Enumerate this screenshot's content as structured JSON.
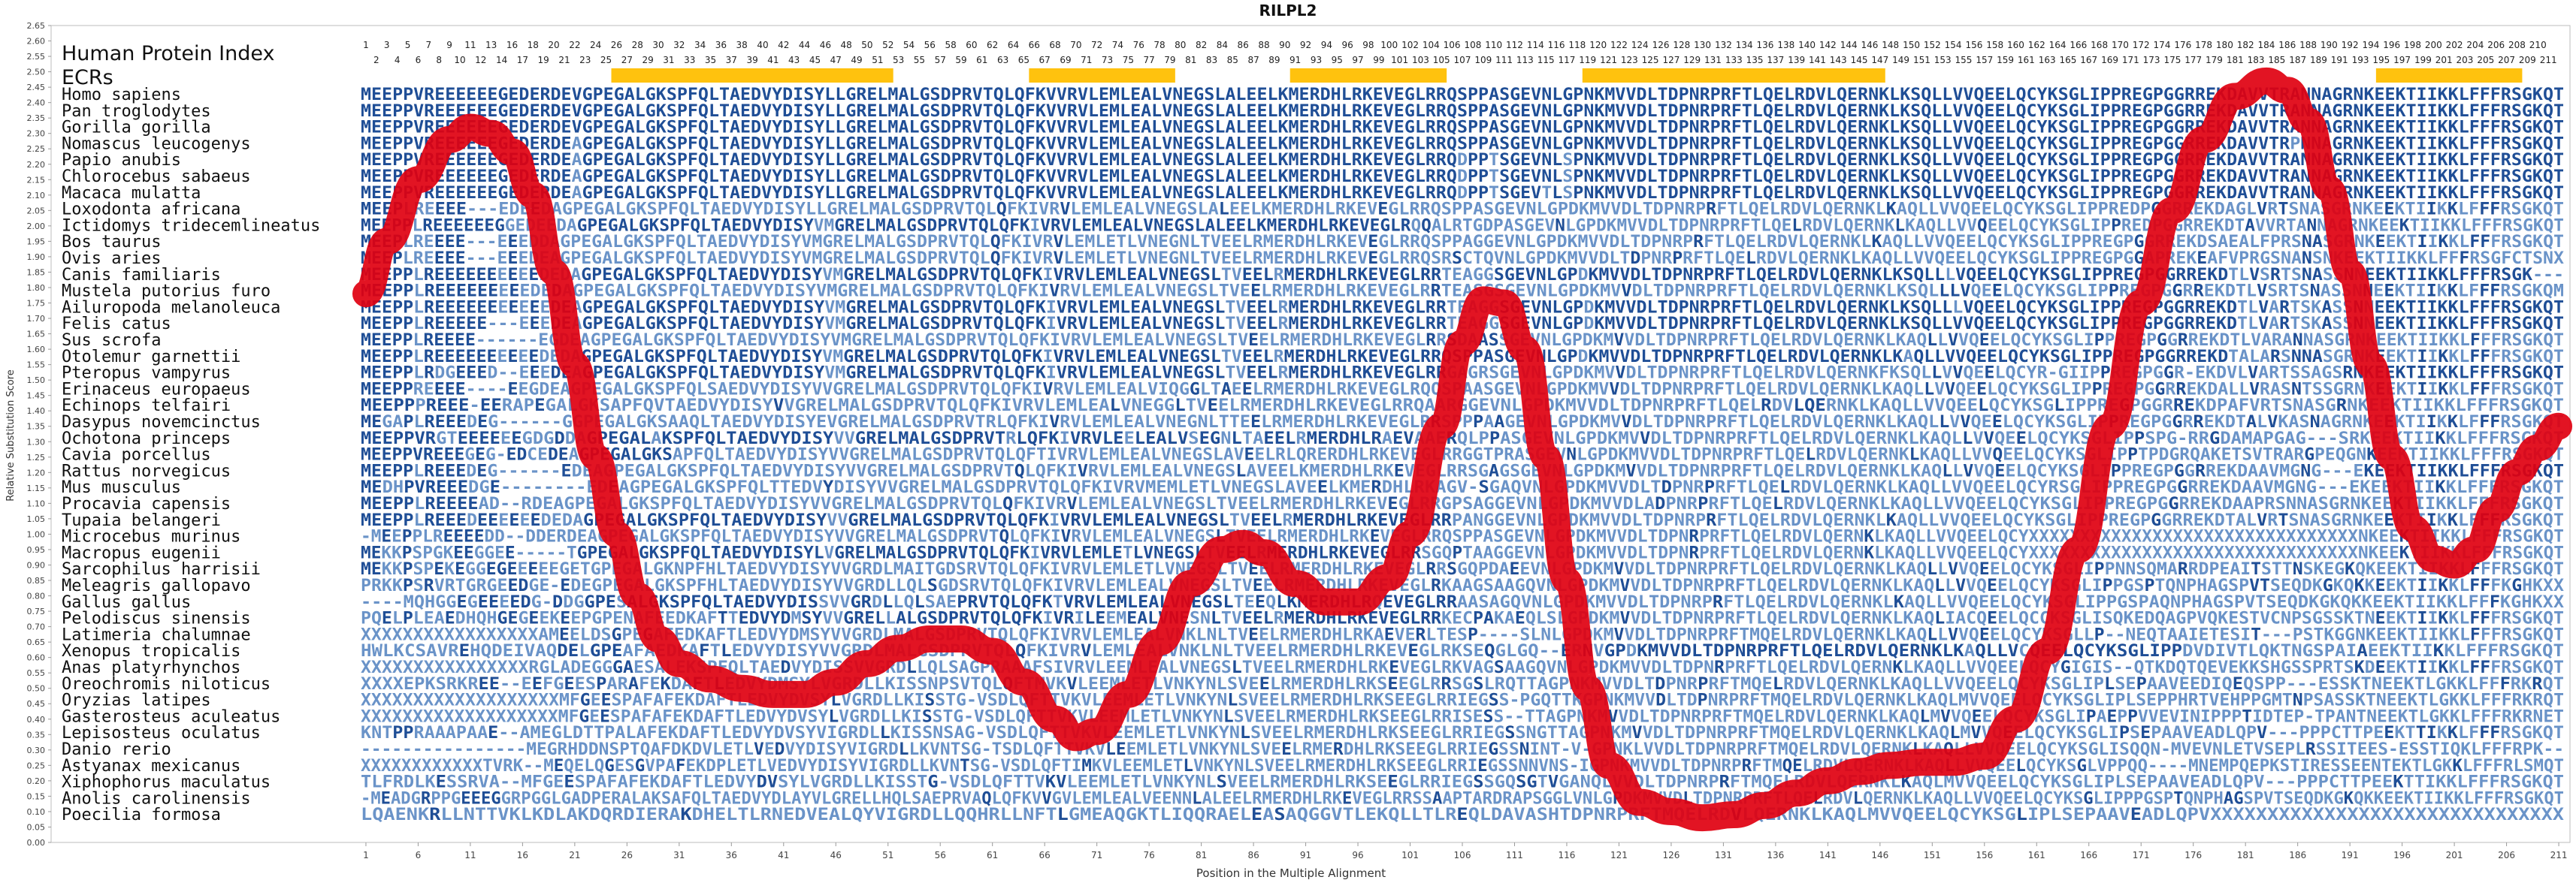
{
  "title": "RILPL2",
  "labels": {
    "human_index": "Human Protein Index",
    "ecrs": "ECRs",
    "y_axis": "Relative Substitution Score",
    "x_axis": "Position in the Multiple Alignment"
  },
  "colors": {
    "curve": "#e00010",
    "ecr_bar": "#ffc20e",
    "seq_conserved": "#1f4e96",
    "seq_variable": "#6a93c8",
    "frame": "#bdbdbd"
  },
  "human_index_row1": [
    "1",
    "3",
    "5",
    "7",
    "9",
    "11",
    "13",
    "16",
    "18",
    "20",
    "22",
    "24",
    "26",
    "28",
    "30",
    "32",
    "34",
    "36",
    "38",
    "40",
    "42",
    "44",
    "46",
    "48",
    "50",
    "52",
    "54",
    "56",
    "58",
    "60",
    "62",
    "64",
    "66",
    "68",
    "70",
    "72",
    "74",
    "76",
    "78",
    "80",
    "82",
    "84",
    "86",
    "88",
    "90",
    "92",
    "94",
    "96",
    "98",
    "100",
    "102",
    "104",
    "106",
    "108",
    "110",
    "112",
    "114",
    "116",
    "118",
    "120",
    "122",
    "124",
    "126",
    "128",
    "130",
    "132",
    "134",
    "136",
    "138",
    "140",
    "142",
    "144",
    "146",
    "148",
    "150",
    "152",
    "154",
    "156",
    "158",
    "160",
    "162",
    "164",
    "166",
    "168",
    "170",
    "172",
    "174",
    "176",
    "178",
    "180",
    "182",
    "184",
    "186",
    "188",
    "190",
    "192",
    "194",
    "196",
    "198",
    "200",
    "202",
    "204",
    "206",
    "208",
    "210"
  ],
  "human_index_row2": [
    "2",
    "4",
    "6",
    "8",
    "10",
    "12",
    "14",
    "17",
    "19",
    "21",
    "23",
    "25",
    "27",
    "29",
    "31",
    "33",
    "35",
    "37",
    "39",
    "41",
    "43",
    "45",
    "47",
    "49",
    "51",
    "53",
    "55",
    "57",
    "59",
    "61",
    "63",
    "65",
    "67",
    "69",
    "71",
    "73",
    "75",
    "77",
    "79",
    "81",
    "83",
    "85",
    "87",
    "89",
    "91",
    "93",
    "95",
    "97",
    "99",
    "101",
    "103",
    "105",
    "107",
    "109",
    "111",
    "113",
    "115",
    "117",
    "119",
    "121",
    "123",
    "125",
    "127",
    "129",
    "131",
    "133",
    "135",
    "137",
    "139",
    "141",
    "143",
    "145",
    "147",
    "149",
    "151",
    "153",
    "155",
    "157",
    "159",
    "161",
    "163",
    "165",
    "167",
    "169",
    "171",
    "173",
    "175",
    "177",
    "179",
    "181",
    "183",
    "185",
    "187",
    "189",
    "191",
    "193",
    "195",
    "197",
    "199",
    "201",
    "203",
    "205",
    "207",
    "209",
    "211"
  ],
  "ecr_segments": [
    [
      25,
      51
    ],
    [
      65,
      78
    ],
    [
      90,
      104
    ],
    [
      118,
      146
    ],
    [
      194,
      207
    ]
  ],
  "x_ticks": [
    "1",
    "6",
    "11",
    "16",
    "21",
    "26",
    "31",
    "36",
    "41",
    "46",
    "51",
    "56",
    "61",
    "66",
    "71",
    "76",
    "81",
    "86",
    "91",
    "96",
    "101",
    "106",
    "111",
    "116",
    "121",
    "126",
    "131",
    "136",
    "141",
    "146",
    "151",
    "156",
    "161",
    "166",
    "171",
    "176",
    "181",
    "186",
    "191",
    "196",
    "201",
    "206",
    "211"
  ],
  "y_ticks": [
    "0.00",
    "0.05",
    "0.10",
    "0.15",
    "0.20",
    "0.25",
    "0.30",
    "0.35",
    "0.40",
    "0.45",
    "0.50",
    "0.55",
    "0.60",
    "0.65",
    "0.70",
    "0.75",
    "0.80",
    "0.85",
    "0.90",
    "0.95",
    "1.00",
    "1.05",
    "1.10",
    "1.15",
    "1.20",
    "1.25",
    "1.30",
    "1.35",
    "1.40",
    "1.45",
    "1.50",
    "1.55",
    "1.60",
    "1.65",
    "1.70",
    "1.75",
    "1.80",
    "1.85",
    "1.90",
    "1.95",
    "2.00",
    "2.05",
    "2.10",
    "2.15",
    "2.20",
    "2.25",
    "2.30",
    "2.35",
    "2.40",
    "2.45",
    "2.50",
    "2.55",
    "2.60",
    "2.65"
  ],
  "y_range": [
    0,
    2.65
  ],
  "x_range": [
    1,
    211
  ],
  "curve_points": [
    [
      1,
      1.78
    ],
    [
      3,
      1.95
    ],
    [
      6,
      2.15
    ],
    [
      9,
      2.28
    ],
    [
      11,
      2.32
    ],
    [
      13,
      2.3
    ],
    [
      15,
      2.24
    ],
    [
      17,
      2.1
    ],
    [
      19,
      1.85
    ],
    [
      21,
      1.55
    ],
    [
      23,
      1.25
    ],
    [
      25,
      1.0
    ],
    [
      27,
      0.8
    ],
    [
      29,
      0.66
    ],
    [
      31,
      0.58
    ],
    [
      34,
      0.53
    ],
    [
      37,
      0.5
    ],
    [
      40,
      0.48
    ],
    [
      43,
      0.48
    ],
    [
      46,
      0.52
    ],
    [
      49,
      0.58
    ],
    [
      52,
      0.63
    ],
    [
      55,
      0.66
    ],
    [
      58,
      0.66
    ],
    [
      61,
      0.62
    ],
    [
      64,
      0.52
    ],
    [
      67,
      0.4
    ],
    [
      69,
      0.34
    ],
    [
      71,
      0.36
    ],
    [
      74,
      0.48
    ],
    [
      77,
      0.65
    ],
    [
      80,
      0.84
    ],
    [
      83,
      0.95
    ],
    [
      85,
      0.97
    ],
    [
      87,
      0.94
    ],
    [
      90,
      0.84
    ],
    [
      93,
      0.78
    ],
    [
      96,
      0.78
    ],
    [
      99,
      0.86
    ],
    [
      101,
      1.0
    ],
    [
      104,
      1.35
    ],
    [
      106,
      1.62
    ],
    [
      108,
      1.76
    ],
    [
      110,
      1.75
    ],
    [
      112,
      1.6
    ],
    [
      114,
      1.25
    ],
    [
      116,
      0.85
    ],
    [
      118,
      0.5
    ],
    [
      120,
      0.25
    ],
    [
      123,
      0.13
    ],
    [
      126,
      0.1
    ],
    [
      129,
      0.08
    ],
    [
      132,
      0.09
    ],
    [
      135,
      0.12
    ],
    [
      138,
      0.16
    ],
    [
      141,
      0.2
    ],
    [
      144,
      0.23
    ],
    [
      147,
      0.25
    ],
    [
      150,
      0.26
    ],
    [
      153,
      0.26
    ],
    [
      156,
      0.28
    ],
    [
      159,
      0.4
    ],
    [
      162,
      0.62
    ],
    [
      165,
      0.95
    ],
    [
      168,
      1.35
    ],
    [
      171,
      1.75
    ],
    [
      174,
      2.05
    ],
    [
      177,
      2.28
    ],
    [
      180,
      2.42
    ],
    [
      183,
      2.47
    ],
    [
      185,
      2.44
    ],
    [
      187,
      2.34
    ],
    [
      189,
      2.12
    ],
    [
      191,
      1.85
    ],
    [
      193,
      1.55
    ],
    [
      195,
      1.25
    ],
    [
      197,
      1.02
    ],
    [
      199,
      0.92
    ],
    [
      201,
      0.9
    ],
    [
      203,
      0.95
    ],
    [
      205,
      1.08
    ],
    [
      207,
      1.2
    ],
    [
      209,
      1.28
    ],
    [
      211,
      1.35
    ]
  ],
  "species": [
    {
      "name": "Homo sapiens",
      "seq": "MEEPPVREEEEEEGEDERDEVGPEGALGKSPFQLTAEDVYDISYLLGRELMALGSDPRVTQLQFKVVRVLEMLEALVNEGSLALEELKMERDHLRKEVEGLRRQSPPASGEVNLGPNKMVVDLTDPNRPRFTLQELRDVLQERNKLKSQLLVVQEELQCYKSGLIPPREGPGGRREKDAVVTRANNAGRNKEEKTIIKKLFFFRSGKQT"
    },
    {
      "name": "Pan troglodytes",
      "seq": "MEEPPVREEEEEEGEDERDEVGPEGALGKSPFQLTAEDVYDISYLLGRELMALGSDPRVTQLQFKVVRVLEMLEALVNEGSLALEELKMERDHLRKEVEGLRRQSPPASGEVNLGPNKMVVDLTDPNRPRFTLQELRDVLQERNKLKSQLLVVQEELQCYKSGLIPPREGPGGRREKDAVVTRANNAGRNKEEKTIIKKLFFFRSGKQT"
    },
    {
      "name": "Gorilla gorilla",
      "seq": "MEEPPVREEEEEEGEDERDEVGPEGALGKSPFQLTAEDVYDISYLLGRELMALGSDPRVTQLQFKVVRVLEMLEALVNEGSLALEELKMERDHLRKEVEGLRRQSPPASGEVNLGPNKMVVDLTDPNRPRFTLQELRDVLQERNKLKSQLLVVQEELQCYKSGLIPPREGPGGRREKDAVVTRANNAGRNKEEKTIIKKLFFFRSGKQT"
    },
    {
      "name": "Nomascus leucogenys",
      "seq": "MEEPPVREEEEEEGEDERDEAGPEGALGKSPFQLTAEDVYDISYLLGRELMALGSDPRVTQLQFKVVRVLEMLEALVNEGSLALEELKMERDHLRKEVEGLRRQSPPASGEVNLGPNKMVVDLTDPNRPRFTLQELRDVLQERNKLKSQLLVVQEELQCYKSGLIPPREGPGGRREKDAVVTRPNNAGRNKEEKTIIKKLFFFRSGKQT"
    },
    {
      "name": "Papio anubis",
      "seq": "MEEPPVREEEEEEGEDERDEAGPEGALGKSPFQLTAEDVYDISYLLGRELMALGSDPRVTQLQFKVVRVLEMLEALVNEGSLALEELKMERDHLRKEVEGLRRQDPPTSGEVNLSPNKMVVDLTDPNRPRFTLQELRDVLQERNKLKSQLLVVQEELQCYKSGLIPPREGPGGRREKDAVVTRANNAGRNKEEKTIIKKLFFFRSGKQT"
    },
    {
      "name": "Chlorocebus sabaeus",
      "seq": "MEEPPVREEEEEEGEDERDEAGPEGALGKSPFQLTAEDVYDISYLLGRELMALGSDPRVTQLQFKVVRVLEMLEALVNEGSLALEELKMERDHLRKEVEGLRRQDPPTSGEVNLSPNKMVVDLTDPNRPRFTLQELRDVLQERNKLKSQLLVVQEELQCYKSGLIPPREGPGGRREKDAVVTRANNAGRNKEEKTIIKKLFFFRSGKQT"
    },
    {
      "name": "Macaca mulatta",
      "seq": "MEEPPVREEEEEEGEDERDEAGPEGALGKSPFQLTAEDVYDISYLLGRELMALGSDPRVTQLQFKVVRVLEMLEALVNEGSLALEELKMERDHLRKEVEGLRRQDPPTSGEVTLSPNKMVVDLTDPNRPRFTLQELRDVLQERNKLKSQLLVVQEELQCYKSGLIPPREGPGGRREKDAVVTRANNAGRNKEEKTIIKKLFFFRSGKQT"
    },
    {
      "name": "Loxodonta africana",
      "seq": "MEEPLREEEE---EDEEDAGPEGALGKSPFQLTAEDVYDISYLLGRELMALGSDPRVTQLQFKIVRVLEMLEALVNEGSLALEELKMERDHLRKEVEGLRRQSPPASGEVNLGPDKMVVDLTDPNRPRFTLQELRDVLQERNKLKAQLLVVQEELQCYKSGLIPPREDPGGRREKDAGLVRTSNASGRNKEEKTIIKKLFFFRSGKQT"
    },
    {
      "name": "Ictidomys tridecemlineatus",
      "seq": "MEEPPLREEEEEEGGEDEEDAGPEGALGKSPFQLTAEDVYDISYVMGRELMALGSDPRVTQLQFKIVRVLEMLEALVNEGSLALEELKMERDHLRKEVEGLRQQALRTGDPASGEVNLGPDKMVVDLTDPNRPRFTLQELRDVLQERNKLKAQLLVVQEELQCYKSGLIPPREDPGGRREKDTAVVRTANNAGRNKEEKTIIKKLFFFRSGKQT"
    },
    {
      "name": "Bos taurus",
      "seq": "MEEPLREEEE---EEEDDAGPEGALGKSPFQLTAEDVYDISYVMGRELMALGSDPRVTQLQFKIVRVLEMLETLVNEGNLTVEELRMERDHLRKEVEGLRRQSPPAGGEVNLGPDKMVVDLTDPNRPRFTLQELRDVLQERNKLKAQLLVVQEELQCYKSGLIPPREGPGGRREKDSAEALFPRSNASGRNKEEKTIIKKLFFFRSGKQT"
    },
    {
      "name": "Ovis aries",
      "seq": "MEEPLREEEE---EEEDEAGPEGALGKSPFQLTAEDVYDISYVMGRELMALGSDPRVTQLQFKIVRVLEMLETLVNEGNLTVEELRMERDHLRKEVEGLRRQSRSCTQVNLGPDKMVVDLTDPNRPRFTLQELRDVLQERNKLKAQLLVVQEELQCYKSGLIPPREGPGGAPREKEAFVPRGSNANSNKEEKTIIKKLFFFRSGFCTSNX"
    },
    {
      "name": "Canis familiaris",
      "seq": "MEEPPLREEEEEEEEEEDEDAGPEGALGKSPFQLTAEDVYDISYVMGRELMALGSDPRVTQLQFKIVRVLEMLEALVNEGSLTVEELRMERDHLRKEVEGLRRTEAGGSGEVNLGPDKMVVDLTDPNRPRFTLQELRDVLQERNKLKSQLLLVQEELQCYKSGLIPPREGPGGRREKDTLVSRTSNASSNNEEKTIIKKLFFFRSGK---"
    },
    {
      "name": "Mustela putorius furo",
      "seq": "MEEPPLREEEEEEEEEDEDAGPEGALGKSPFQLTAEDVYDISYVMGRELMALGSDPRVTQLQFKIVRVLEMLEALVNEGSLTVEELRMERDHLRKEVEGLRRTEASGSGEVNLGPDKMVVDLTDPNRPRFTLQELRDVLQERNKLKSQLLLVQEELQCYKSGLIPPREGPGGRREKDTLVSRTSNASSNNEEKTIIKKLFFFRSGKQM"
    },
    {
      "name": "Ailuropoda melanoleuca",
      "seq": "MEEPPLREEEEEEEEEEEDEAGPEGALGKSPFQLTAEDVYDISYVMGRELMALGSDPRVTQLQFKIVRVLEMLEALVNEGSLTVEELRMERDHLRKEVEGLRRTEAGGSGEVNLGPDKMVVDLTDPNRPRFTLQELRDVLQERNKLKSQLLLVQEELQCYKSGLIPPREGPGGRREKDTLVARTSKASSNNEEKTIIKKLFFFRSGKQT"
    },
    {
      "name": "Felis catus",
      "seq": "MEEPPLREEEEE---EEEDEAGPEGALGKSPFQLTAEDVYDISYVMGRELMALGSDPRVTQLQFKIVRVLEMLEALVNEGSLTVEELRMERDHLRKEVEGLRRTEAGGSGEVNLGPDKMVVDLTDPNRPRFTLQELRDVLQERNKLKSQLLVVQEELQCYKSGLIPPREGPGGRREKDTLVARTSKASSNNEEKTIIKKLFFFRSGKQT"
    },
    {
      "name": "Sus scrofa",
      "seq": "MEEPPLREEEE------EGDEAGPEGALGKSPFQLTAEDVYDISYVMGRELMALGSDPRVTQLQFKIVRVLEMLEALVNEGSLTVEELRMERDHLRKEVEGLRRSDAASSGEVNLGPDKMVVDLTDPNRPRFTLQELRDVLQERNKLKAQLLVVQEELQCYKSGLIPPREGPGGRREKDTLVARANNASGRNKEEKTIIKKLFFFRSGKQT"
    },
    {
      "name": "Otolemur garnettii",
      "seq": "MEEPPLREEEEEEEEEEDEDAGPEGALGKSPFQLTAEDVYDISYVMGRELMALGSDPRVTQLQFKIVRVLEMLEALVNEGSLTVEELRMERDHLRKEVEGLRRQSPPASGEVNLGPDKMVVDLTDPNRPRFTLQELRDVLQERNKLKAQLLVVQEELQCYKSGLIPPREGPGGRREKDTALARSNNASGRNKEEKTIIKKLFFFRSGKQT"
    },
    {
      "name": "Pteropus vampyrus",
      "seq": "MEEPPLRDGEEED--EEEDEAGPEGALGKSPFQLTAEDVYDISYVMGRELMALGSDPRVTQLQFKIVRVLEMLEALVNEGSLTVEELRMERDHLRKEVEGLRRGAGRSGEVNLGPDKMVVDLTDPNRPRFTLQELRDVLQERNKFKSQLLVVQEELQCYR-GIIPPREGPGGR-EKDVLVARTSSAGSRNKEEKTIIKKLFFFRSGKQT"
    },
    {
      "name": "Erinaceus europaeus",
      "seq": "MEEPPREEEE----EEGDEAGPEGALGKSPFQLSAEDVYDISYVVGRELMALGSDPRVTQLQFKIVRVLEMLEALVIQGGLTAEELRMERDHLRKEVEGLRQQSPAASGEVNLGPDKMVVDLTDPNRPRFTLQELRDVLQERNKLKAQLLVVQEELQCYKSGLIPPREGPGGRREKDALLVRASNTSSGRNKEEKTIIKKLFFFRSGKQT"
    },
    {
      "name": "Echinops telfairi",
      "seq": "MEEPPPREEE-EERAPEGALGKSAPFQVTAEDVYDISYVVGRELMALGSDPRVTQLQFKIVRVLEMLEALVNEGGLTVEELRMERDHLRKEVEGLRRQAARGGEVNLGPDKMVVDLTDPNRPRFTLQELRDVLQERNKLKAQLLVVQEELQCYKSGLIPPREGPGGRREKDPAFVRTSNASGRNKEEKTIIKKLFFFRSGKQT"
    },
    {
      "name": "Dasypus novemcinctus",
      "seq": "MEGAPLREEEDEG------GGPEGALGKSAAQLTAEDVYDISYEVGRELMALGSDPRVTRLQFKIVRVLEMLEALVNEGNLTTEELRMERDHLRKEVEGLRRSPPPAAGEVNLGPDKMVVDLTDPNRPRFTLQELRDVLQERNKLKAQLLVVQEELQCYKSGLIPPREGPGGRREKDTALVKASNAGRNKEEKTIIKKLFFFRSGKQT"
    },
    {
      "name": "Ochotona princeps",
      "seq": "MEEPPVRGTEEEEEEGDGDDAGPEGALAKSPFQLTAEDVYDISYVVGRELMALGSDPRVTRLQFKIVRVLEELEALVSEGNLTAEELRMERDHLRAEVAAERQLPPASGEVNLGPDKMVVDLTDPNRPRFTLQELRDVLQERNKLKAQLLVVQEELQCYKSGLIPPSPG-RRGDAMAPGAG---SRKEEKTIIKKLFFFRSGKQT"
    },
    {
      "name": "Cavia porcellus",
      "seq": "MEEPPVREEEGEG-EDCEDEAGPEGALGKSAPFQLTAEDVYDISYVVGRELMALGSDPRVTQLQFTIVRVLEMLEALVNEGSLAVEELRLQRERDHLRKEVEGLRRGGTPRASGEVNLGPDKMVVDLTDPNRPRFTLQELRDVLQERNKLKAQLLVVQEELQCYKSGLIPPTPDGRQAKETSVTRARGPEQGNKEEKTIIKKLFFFRSGKQT"
    },
    {
      "name": "Rattus norvegicus",
      "seq": "MEEPPLREEEDEG------EDEAGPEGALGKSPFQLTAEDVYDISYVVGRELMALGSDPRVTQLQFKIVRVLEMLEALVNEGSLAVEELKMERDHLRKEVEGLRRSGAGSGEVNLGPDKMVVDLTDPNRPRFTLQELRDVLQERNKLKAQLLVVQEELQCYKSGLIPPREGPGGRREKDAAVMGNG---EKEEKTIIKKLFFFRSGKQT"
    },
    {
      "name": "Mus musculus",
      "seq": "MEDHPVREEEDGE--------EDEAGPEGALGKSPFQLTTEDVYDISYVVGRELMALGSDPRVTQLQFKIVRVMEMLETLVNEGSLAVEELKMERDHLRKAGV-SGAQVNLGPDKMVVDLTDPNRPRFTLQELRDVLQERNKLKAQLLVVQEELQCYRSGLIPPREGPGGRREKDAAVMGNG---EKEEKTIIKKLFFFRSGKQT"
    },
    {
      "name": "Procavia capensis",
      "seq": "MEEPPLREEEEAD--RDEAGPEGALGKSPFQLTAEDVYDISYVVGRELMALGSDPRVTQLQFKIVRVLEMLEALVNEGSLTVEELRMERDHLRKEVEGLRRGPSAGGEVNLGPDKMVVDLADPNRPRFTLQELRDVLQERNKLKAQLLVVQEELQCYKSGLIPPREGPGGRREKDAAPRSNNASGRNKEEKTIIKKLFFFRSGKQT"
    },
    {
      "name": "Tupaia belangeri",
      "seq": "MEEPPLREEEDEEEEEEDEDAGPEGALGKSPFQLTAEDVYDISYVVGRELMALGSDPRVTQLQFKIVRVLEMLEALVNEGSLTVEELRMERDHLRKEVEGLRRPANGGEVNLGPDKMVVDLTDPNRPRFTLQELRDVLQERNKLKAQLLVVQEELQCYKSGLIPPREGPGGRREKDTALVRTSNASGRNKEEKTIIKKLFFFRSGKQT"
    },
    {
      "name": "Microcebus murinus",
      "seq": "-MEEPPLREEEEDD--DDERDEAGPEGALGKSPFQLTAEDVYDISYVVGRELMALGSDPRVTQLQFKIVRVLEMLEALVNEGSLTVEELRMERDHLRKEVEGLRRQSPPASGEVNLGPDKMVVDLTDPNRPRFTLQELRDVLQERNKLKAQLLVVQEELQCYXXXXXXXXXXXXXXXXXXXXXXXXXXXXXXXXNKEEKTIIKKLFFFRSGKQT"
    },
    {
      "name": "Macropus eugenii",
      "seq": "MEKKPSPGKEEGGEE-----TGPEGALGKSPFQLTAEDVYDISYLVGRELMALGSDPRVTQLQFKIVRVLEMLETLVNEGSLTVEELRMERDHLRKEVEGLRRSGQPTAAGGEVNLGPDKMVVDLTDPNRPRFTLQELRDVLQERNKLKAQLLVVQEELQCYXXXXXXXXXXXXXXXXXXXXXXXXXXXXXXXXNKEEKTIIKKLFFFRSGKQT"
    },
    {
      "name": "Sarcophilus harrisii",
      "seq": "MEKKPSPEKEGGEGEEEEEGETGPEGALGKNPFHLTAEDVYDISYVVGRDLMAITGDSRVTQLQFKIVRVLEMLETLVNEGSLTVEELRMERDHLRKEVEGLRRSGQPDAEEVNLGPDKMVVDLTDPNRPRFTLQELRDVLQERNKLKAQLLVVQEELQCYKSGLIPPNNSQMARRDPEAITSTTNSKEGKQKEEKTIIKKLFFFRSGKQT"
    },
    {
      "name": "Meleagris gallopavo",
      "seq": "PRKKPSRVRTGRGEEDGE-EDEGPEGALGKSPFHLTAEDVYDISYVVGRDLLQLSGDSRVTQLQFKIVRVLEMLEALVNEGSLTVEELRMERDHLRKEVEGLRKAAGSAAGQVNLGPDKMVVDLTDPNRPRFTLQELRDVLQERNKLKAQLLVVQEELQCYKSGLIPPGSPTQNPHAGSPVTSEQDKGKQKKEEKTIIKKLFFFKGHKXX"
    },
    {
      "name": "Gallus gallus",
      "seq": "----MQHGGEGEEEEDG-DDGGPESALGKSPFQLTAEDVYDISSVVGRDLLQLSAEPRVTQLQFKTVRVLEMLEALVNEGSLTEEQLKMERDHLRQEVEGLRRAASAGQVNLGPDKMVVDLTDPNRPRFTLQELRDVLQERNKLKAQLLVVQEELQCYKSGLIPPGSPAQNPHAGSPVTSEQDKGKQKKEEKTIIKKLFFFKGHKXX"
    },
    {
      "name": "Pelodiscus sinensis",
      "seq": "PQELPLEAEDHQHGEGEEKEEPGPENAFEEDKAFTTEDVYDMSYVVGRELLALGSDPRVTQLQFKIVRILEEMEALVNESNLTVEELRMERDHLRKEVEGLRRKECPAKAEQLSLGPDKMVVDLTDPNRPRFTLQELRDVLQERNKLKAQLIACQEELQCCKSGLISQKEDQAGPVQKESTVCNPSGSSKTNEEKTIIKKLFFFRSGKQT"
    },
    {
      "name": "Latimeria chalumnae",
      "seq": "XXXXXXXXXXXXXXXXXAMEELDSGPEGAFEDKAFTLEDVYDMSYVVGRDLMALGSDPRVTQLQFKIVRVLEMLEALVNKLNLTVEELRMERDHLRKAEVERLTESP----SLNLGPDKMVVDLTDPNRPRFTMQELRDVLQERNKLKAQLLVVQEELQCYKSGLLP--NEQTAAIETESIT---PSTKGGNKEEKTIIKKLFFFRSGKQT"
    },
    {
      "name": "Xenopus tropicalis",
      "seq": "HWLKCSAVREHQDEIVAQDELGPEAFAEDKAFTLEDVYDISYVVGRDLMALGSDPRVTQLQFKIVRVLEMLEALVNKLNLTVEELRMERDHLRKEVEGLRKSEQGLGQ--ERNVGPDKMVVDLTDPNRPRFTLQELRDVLQERNKLKAQLLVCQEELQCYKSGLIPPDVDIVTLQKTNGSPAIAEEKTIIKKLFFFRSGKQT"
    },
    {
      "name": "Anas platyrhynchos",
      "seq": "XXXXXXXXXXXXXXXXRGLADEGGGAESALEKSPFQLTAEDVYDISSVVGRDLLQLSAGPRAAAFSIVRVLEEMLEALVNEGSLTVEELRMERDHLRKEVEGLRKVAGSAAGQVNLGPDKMVVDLTDPNRPRFTLQELRDVLQERNKLKAQLLVVQEELQCYGIGIS--QTKDQTQEVEKKSHGSSPRTSKDEEKTIIKKLFFFRSGKQT"
    },
    {
      "name": "Oreochromis niloticus",
      "seq": "XXXXEPKSRKREE--EEFGEESPARAFEKDAFTLEDVYDMSYLVGRDLLKISSNPSVTQLQFTMVKVLEEMLETLVNKYNLSVEELRMERDHLRKSEEGLRRSGSLRQTTAGPNKMVVDLTDPNRPRFTMQELRDVLQERNKLKAQLLVVQEELQCYKSGLIPLSEPAAVEEDIQEQSPP---ESSKTNEEKTLGKKLFFFRKRQT"
    },
    {
      "name": "Oryzias latipes",
      "seq": "XXXXXXXXXXXXXXXXXXXMFGEESPAFAFEKDAFTLEDVYDVSYLVGRDLLKISSTG-VSDLQFTTVKVLEEMLETLVNKYNLSVEELRMERDHLRKSEEGLRRIEGSS-PGQTTKGPNKMVVDLTDPNRPRFTMQELRDVLQERNKLKAQLMVVQEELQCYKSGLIPLSEPPHRTVEHPPGMTNPSASSKTNEEKTLGKKLFFFRKRQT"
    },
    {
      "name": "Gasterosteus aculeatus",
      "seq": "XXXXXXXXXXXXXXXXXXXMFGEESPAFAFEKDAFTLEDVYDVSYLVGRDLLKISSTG-VSDLQFTTVKVLEEMLETLVNKYNLSVEELRMERDHLRKSEEGLRRISESS--TTAGPNKMVVDLTDPNRPRFTMQELRDVLQERNKLKAQLMVVQEELQCYKSGLIPAEPPVVEVINIPPPTIDTEP-TPANTNEEKTLGKKLFFFRKRNET"
    },
    {
      "name": "Lepisosteus oculatus",
      "seq": "KNTPPRAAAPAAE--AMEGLDTTPALAFEKDAFTLEDVYDVSYVIGRDLLKISSNSAG-VSDLQFTTVKVLEEMLETLVNKYNLSVEELRMERDHLRKSEEGLRRIEGSSNGTTAGPNKMVVDLTDPNRPRFTMQELRDVLQERNKLKAQLMVVQEELQCYKSGLIPSEPAAVEADLQPV---PPPCTTPEEKTTIKKLFFFRSGKQT"
    },
    {
      "name": "Danio rerio",
      "seq": "----------------MEGRHDDNSPTQAFDKDVLETLVEDVYDISYVIGRDLLKVNTSG-TSDLQFTTVKVLEEMLETLVNKYNLSVEELRMERDHLRKSEEGLRRIEGSSNINT-V-GPNKLVVDLTDPNRPRFTMQELRDVLQERNKLKAQLLVVQEELQCYKSGLISQQN-MVEVNLETVSEPLRSSITEES-ESSTIQKLFFFRPK--"
    },
    {
      "name": "Astyanax mexicanus",
      "seq": "XXXXXXXXXXXXTVRK--MEQELQGESGVPAFEKDPLETLVEDVYDISYVIGRDLLKVNTSG-VSDLQFTIMKVLEEMLETLVNKYNLSVEELRMERDHLRKSEEGLRRIEGSSNNVNS-IGPNKMVVDLTDPNRPRFTMQELRDVLQERNKLKAQLLVVQEELQCYKSGLVPPQQ----MNEMPQEPKSTIRESSEENTEKTLGKKLFFFRLSMQT"
    },
    {
      "name": "Xiphophorus maculatus",
      "seq": "TLFRDLKESSRVA--MFGEESPAFAFEKDAFTLEDVYDVSYLVGRDLLKISSTG-VSDLQFTTVKVLEEMLETLVNKYNLSVEELRMERDHLRKSEEGLRRIEGSSGQSGTVGANQLVVDLTDPNRPRFTMQELRDVLQERNKLKAQLMVVQEELQCYKSGLIPLSEPAAVEADLQPV---PPPCTTPEEKTTIKKLFFFRSGKQT"
    },
    {
      "name": "Anolis carolinensis",
      "seq": "-MEADGRPPGEEEGGRPGGLGADPERALAKSAFQLTAEDVYDLAYVLGRELLHQLSAEPRVAQLQFKVVGVLEMLEALVEENNLALEELRMERDHLRKEVEGLRRSSAAPTARDRAPSGGLVNLGPDKMVVDLTDPNRPRFTLQELRDVLQERNKLKAQLLVVQEELQCYKSGLIPPPGSPTQNPHAGSPVTSEQDKGKQKKEEKTIIKKLFFFRSGKQT"
    },
    {
      "name": "Poecilia formosa",
      "seq": "LQAENKRLLNTTVKLKDLAKDQRDIERAKDHELTLRNEDVEALQYVIGRDLLQQHRLLNFTLGMEAQGKTLIQQRAELEASAQGGVTLEKQLLTLREQLDAVASHTDPNRPRFTMQELRDVLQERNKLKAQLMVVQEELQCYKSGLIPLSEPAAVEADLQPVXXXXXXXXXXXXXXXXXXXXXXXXXXXXXXX"
    }
  ]
}
